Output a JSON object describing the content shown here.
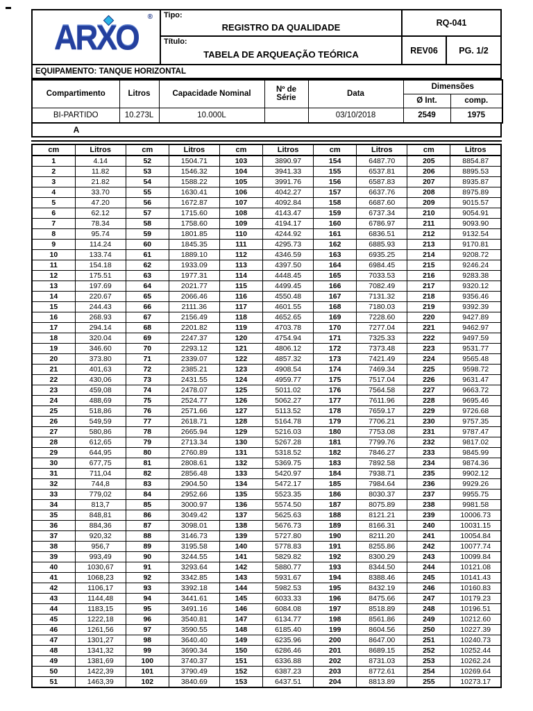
{
  "header": {
    "logo_text": "ARXO",
    "registered_mark": "®",
    "logo_navy": "#24409e",
    "logo_cyan": "#29b4e6",
    "tipo_label": "Tipo:",
    "tipo_value": "REGISTRO DA QUALIDADE",
    "titulo_label": "Título:",
    "titulo_value": "TABELA DE ARQUEAÇÃO TEÓRICA",
    "doc_code": "RQ-041",
    "revision": "REV06",
    "page": "PG. 1/2"
  },
  "equipment_line": "EQUIPAMENTO: TANQUE HORIZONTAL",
  "info_table": {
    "headers": {
      "compartimento": "Compartimento",
      "litros": "Litros",
      "capacidade": "Capacidade Nominal",
      "serie": "Nº de Série",
      "data": "Data",
      "dimensoes": "Dimensões",
      "diametro": "Ø Int.",
      "comprimento": "comp."
    },
    "row": {
      "compartimento": "BI-PARTIDO",
      "litros": "10.273L",
      "capacidade": "10.000L",
      "serie": "",
      "data": "03/10/2018",
      "diametro": "2549",
      "comprimento": "1975"
    },
    "section_label": "A"
  },
  "gauge_table": {
    "col_headers": [
      "cm",
      "Litros",
      "cm",
      "Litros",
      "cm",
      "Litros",
      "cm",
      "Litros",
      "cm",
      "Litros"
    ],
    "rows": [
      [
        "1",
        "4.14",
        "52",
        "1504.71",
        "103",
        "3890.97",
        "154",
        "6487.70",
        "205",
        "8854.87"
      ],
      [
        "2",
        "11.82",
        "53",
        "1546.32",
        "104",
        "3941.33",
        "155",
        "6537.81",
        "206",
        "8895.53"
      ],
      [
        "3",
        "21.82",
        "54",
        "1588.22",
        "105",
        "3991.76",
        "156",
        "6587.83",
        "207",
        "8935.87"
      ],
      [
        "4",
        "33.70",
        "55",
        "1630.41",
        "106",
        "4042.27",
        "157",
        "6637.76",
        "208",
        "8975.89"
      ],
      [
        "5",
        "47.20",
        "56",
        "1672.87",
        "107",
        "4092.84",
        "158",
        "6687.60",
        "209",
        "9015.57"
      ],
      [
        "6",
        "62.12",
        "57",
        "1715.60",
        "108",
        "4143.47",
        "159",
        "6737.34",
        "210",
        "9054.91"
      ],
      [
        "7",
        "78.34",
        "58",
        "1758.60",
        "109",
        "4194.17",
        "160",
        "6786.97",
        "211",
        "9093.90"
      ],
      [
        "8",
        "95.74",
        "59",
        "1801.85",
        "110",
        "4244.92",
        "161",
        "6836.51",
        "212",
        "9132.54"
      ],
      [
        "9",
        "114.24",
        "60",
        "1845.35",
        "111",
        "4295.73",
        "162",
        "6885.93",
        "213",
        "9170.81"
      ],
      [
        "10",
        "133.74",
        "61",
        "1889.10",
        "112",
        "4346.59",
        "163",
        "6935.25",
        "214",
        "9208.72"
      ],
      [
        "11",
        "154.18",
        "62",
        "1933.09",
        "113",
        "4397.50",
        "164",
        "6984.45",
        "215",
        "9246.24"
      ],
      [
        "12",
        "175.51",
        "63",
        "1977.31",
        "114",
        "4448.45",
        "165",
        "7033.53",
        "216",
        "9283.38"
      ],
      [
        "13",
        "197.69",
        "64",
        "2021.77",
        "115",
        "4499.45",
        "166",
        "7082.49",
        "217",
        "9320.12"
      ],
      [
        "14",
        "220.67",
        "65",
        "2066.46",
        "116",
        "4550.48",
        "167",
        "7131.32",
        "218",
        "9356.46"
      ],
      [
        "15",
        "244.43",
        "66",
        "2111.36",
        "117",
        "4601.55",
        "168",
        "7180.03",
        "219",
        "9392.39"
      ],
      [
        "16",
        "268.93",
        "67",
        "2156.49",
        "118",
        "4652.65",
        "169",
        "7228.60",
        "220",
        "9427.89"
      ],
      [
        "17",
        "294.14",
        "68",
        "2201.82",
        "119",
        "4703.78",
        "170",
        "7277.04",
        "221",
        "9462.97"
      ],
      [
        "18",
        "320.04",
        "69",
        "2247.37",
        "120",
        "4754.94",
        "171",
        "7325.33",
        "222",
        "9497.59"
      ],
      [
        "19",
        "346.60",
        "70",
        "2293.12",
        "121",
        "4806.12",
        "172",
        "7373.48",
        "223",
        "9531.77"
      ],
      [
        "20",
        "373.80",
        "71",
        "2339.07",
        "122",
        "4857.32",
        "173",
        "7421.49",
        "224",
        "9565.48"
      ],
      [
        "21",
        "401,63",
        "72",
        "2385.21",
        "123",
        "4908.54",
        "174",
        "7469.34",
        "225",
        "9598.72"
      ],
      [
        "22",
        "430,06",
        "73",
        "2431.55",
        "124",
        "4959.77",
        "175",
        "7517.04",
        "226",
        "9631.47"
      ],
      [
        "23",
        "459,08",
        "74",
        "2478.07",
        "125",
        "5011.02",
        "176",
        "7564.58",
        "227",
        "9663.72"
      ],
      [
        "24",
        "488,69",
        "75",
        "2524.77",
        "126",
        "5062.27",
        "177",
        "7611.96",
        "228",
        "9695.46"
      ],
      [
        "25",
        "518,86",
        "76",
        "2571.66",
        "127",
        "5113.52",
        "178",
        "7659.17",
        "229",
        "9726.68"
      ],
      [
        "26",
        "549,59",
        "77",
        "2618.71",
        "128",
        "5164.78",
        "179",
        "7706.21",
        "230",
        "9757.35"
      ],
      [
        "27",
        "580,86",
        "78",
        "2665.94",
        "129",
        "5216.03",
        "180",
        "7753.08",
        "231",
        "9787.47"
      ],
      [
        "28",
        "612,65",
        "79",
        "2713.34",
        "130",
        "5267.28",
        "181",
        "7799.76",
        "232",
        "9817.02"
      ],
      [
        "29",
        "644,95",
        "80",
        "2760.89",
        "131",
        "5318.52",
        "182",
        "7846.27",
        "233",
        "9845.99"
      ],
      [
        "30",
        "677,75",
        "81",
        "2808.61",
        "132",
        "5369.75",
        "183",
        "7892.58",
        "234",
        "9874.36"
      ],
      [
        "31",
        "711,04",
        "82",
        "2856.48",
        "133",
        "5420.97",
        "184",
        "7938.71",
        "235",
        "9902.12"
      ],
      [
        "32",
        "744,8",
        "83",
        "2904.50",
        "134",
        "5472.17",
        "185",
        "7984.64",
        "236",
        "9929.26"
      ],
      [
        "33",
        "779,02",
        "84",
        "2952.66",
        "135",
        "5523.35",
        "186",
        "8030.37",
        "237",
        "9955.75"
      ],
      [
        "34",
        "813,7",
        "85",
        "3000.97",
        "136",
        "5574.50",
        "187",
        "8075.89",
        "238",
        "9981.58"
      ],
      [
        "35",
        "848,81",
        "86",
        "3049.42",
        "137",
        "5625.63",
        "188",
        "8121.21",
        "239",
        "10006.73"
      ],
      [
        "36",
        "884,36",
        "87",
        "3098.01",
        "138",
        "5676.73",
        "189",
        "8166.31",
        "240",
        "10031.15"
      ],
      [
        "37",
        "920,32",
        "88",
        "3146.73",
        "139",
        "5727.80",
        "190",
        "8211.20",
        "241",
        "10054.84"
      ],
      [
        "38",
        "956,7",
        "89",
        "3195.58",
        "140",
        "5778.83",
        "191",
        "8255.86",
        "242",
        "10077.74"
      ],
      [
        "39",
        "993,49",
        "90",
        "3244.55",
        "141",
        "5829.82",
        "192",
        "8300.29",
        "243",
        "10099.84"
      ],
      [
        "40",
        "1030,67",
        "91",
        "3293.64",
        "142",
        "5880.77",
        "193",
        "8344.50",
        "244",
        "10121.08"
      ],
      [
        "41",
        "1068,23",
        "92",
        "3342.85",
        "143",
        "5931.67",
        "194",
        "8388.46",
        "245",
        "10141.43"
      ],
      [
        "42",
        "1106,17",
        "93",
        "3392.18",
        "144",
        "5982.53",
        "195",
        "8432.19",
        "246",
        "10160.83"
      ],
      [
        "43",
        "1144,48",
        "94",
        "3441.61",
        "145",
        "6033.33",
        "196",
        "8475.66",
        "247",
        "10179.23"
      ],
      [
        "44",
        "1183,15",
        "95",
        "3491.16",
        "146",
        "6084.08",
        "197",
        "8518.89",
        "248",
        "10196.51"
      ],
      [
        "45",
        "1222,18",
        "96",
        "3540.81",
        "147",
        "6134.77",
        "198",
        "8561.86",
        "249",
        "10212.60"
      ],
      [
        "46",
        "1261,56",
        "97",
        "3590.55",
        "148",
        "6185.40",
        "199",
        "8604.56",
        "250",
        "10227.39"
      ],
      [
        "47",
        "1301,27",
        "98",
        "3640.40",
        "149",
        "6235.96",
        "200",
        "8647.00",
        "251",
        "10240.73"
      ],
      [
        "48",
        "1341,32",
        "99",
        "3690.34",
        "150",
        "6286.46",
        "201",
        "8689.15",
        "252",
        "10252.44"
      ],
      [
        "49",
        "1381,69",
        "100",
        "3740.37",
        "151",
        "6336.88",
        "202",
        "8731.03",
        "253",
        "10262.24"
      ],
      [
        "50",
        "1422,39",
        "101",
        "3790.49",
        "152",
        "6387.23",
        "203",
        "8772.61",
        "254",
        "10269.64"
      ],
      [
        "51",
        "1463,39",
        "102",
        "3840.69",
        "153",
        "6437.51",
        "204",
        "8813.89",
        "255",
        "10273.17"
      ]
    ]
  }
}
